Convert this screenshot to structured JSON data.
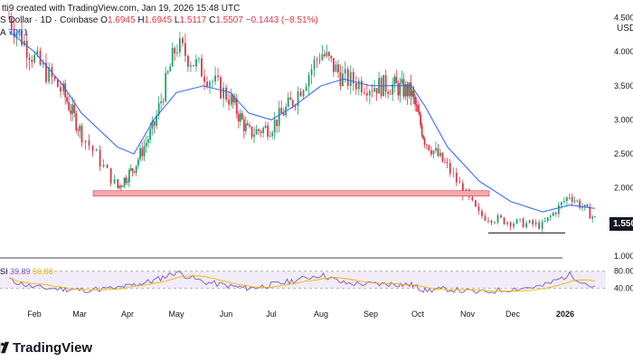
{
  "header": {
    "credit": "tti9 created with TradingView.com, Jan 19, 2026 15:48 UTC",
    "symbol": "S Dollar · 1D · Coinbase",
    "ohlc": {
      "o": "1.6945",
      "h": "1.6945",
      "l": "1.5117",
      "c": "1.5507",
      "chg": "−0.1443 (−8.51%)"
    },
    "ma_label": "A",
    "ma_value": "7081"
  },
  "rsi_label": {
    "name": "SI",
    "v1": "39.89",
    "v2": "50.88"
  },
  "price_axis": {
    "currency": "USD",
    "last_price": "1.550"
  },
  "brand": {
    "name": "TradingView"
  },
  "colors": {
    "up": "#22a06b",
    "down": "#d6394a",
    "ma": "#2962ff",
    "support": "#f4a9ae",
    "rsi": "#7e57c2",
    "rsi_ma": "#f4b400"
  },
  "chart_data": {
    "type": "candlestick",
    "title": "S Dollar · 1D · Coinbase",
    "xlabel": "",
    "ylabel": "USD",
    "x_ticks": [
      "Feb",
      "Mar",
      "Apr",
      "May",
      "Jun",
      "Jul",
      "Aug",
      "Sep",
      "Oct",
      "Nov",
      "Dec",
      "2026"
    ],
    "y_ticks": [
      "4.500",
      "4.000",
      "3.500",
      "3.000",
      "2.500",
      "2.000",
      "1.500",
      "1.000"
    ],
    "y_scale": "linear",
    "ylim": [
      1.0,
      4.6
    ],
    "support_level": 1.92,
    "range_low_level": 1.34,
    "last_close": 1.5507,
    "series": [
      {
        "name": "price_close",
        "x": [
          "Jan 15",
          "Feb 1",
          "Feb 15",
          "Mar 1",
          "Mar 15",
          "Apr 1",
          "Apr 15",
          "May 1",
          "May 15",
          "Jun 1",
          "Jun 15",
          "Jul 1",
          "Jul 15",
          "Aug 1",
          "Aug 15",
          "Sep 1",
          "Sep 15",
          "Oct 1",
          "Oct 15",
          "Nov 1",
          "Nov 15",
          "Dec 1",
          "Dec 15",
          "Jan 1",
          "Jan 19"
        ],
        "y": [
          4.5,
          3.9,
          3.4,
          2.8,
          2.0,
          2.3,
          2.9,
          4.1,
          3.7,
          3.3,
          2.8,
          2.9,
          3.3,
          4.0,
          3.6,
          3.5,
          3.5,
          3.4,
          2.7,
          2.3,
          1.6,
          1.5,
          1.45,
          1.9,
          1.55
        ]
      },
      {
        "name": "moving_average",
        "x": [
          "Jan 15",
          "Feb 1",
          "Feb 15",
          "Mar 1",
          "Mar 15",
          "Apr 1",
          "Apr 15",
          "May 1",
          "May 15",
          "Jun 1",
          "Jun 15",
          "Jul 1",
          "Jul 15",
          "Aug 1",
          "Aug 15",
          "Sep 1",
          "Sep 15",
          "Oct 1",
          "Oct 15",
          "Nov 1",
          "Nov 15",
          "Dec 1",
          "Dec 15",
          "Jan 1",
          "Jan 19"
        ],
        "y": [
          4.3,
          4.0,
          3.5,
          3.1,
          2.6,
          2.5,
          3.0,
          3.4,
          3.5,
          3.4,
          3.1,
          3.0,
          3.2,
          3.5,
          3.6,
          3.5,
          3.5,
          3.5,
          3.2,
          2.6,
          2.1,
          1.8,
          1.65,
          1.75,
          1.7
        ]
      },
      {
        "name": "rsi",
        "x": [
          "Jan 15",
          "Feb 1",
          "Feb 15",
          "Mar 1",
          "Mar 15",
          "Apr 1",
          "Apr 15",
          "May 1",
          "May 15",
          "Jun 1",
          "Jun 15",
          "Jul 1",
          "Jul 15",
          "Aug 1",
          "Aug 15",
          "Sep 1",
          "Sep 15",
          "Oct 1",
          "Oct 15",
          "Nov 1",
          "Nov 15",
          "Dec 1",
          "Dec 15",
          "Jan 1",
          "Jan 19"
        ],
        "y": [
          60,
          42,
          38,
          36,
          40,
          48,
          58,
          78,
          55,
          45,
          40,
          48,
          58,
          72,
          52,
          50,
          50,
          48,
          35,
          38,
          30,
          38,
          45,
          72,
          40
        ]
      }
    ],
    "rsi_ticks": [
      "80.00",
      "40.00"
    ],
    "rsi_range": [
      20,
      90
    ]
  }
}
